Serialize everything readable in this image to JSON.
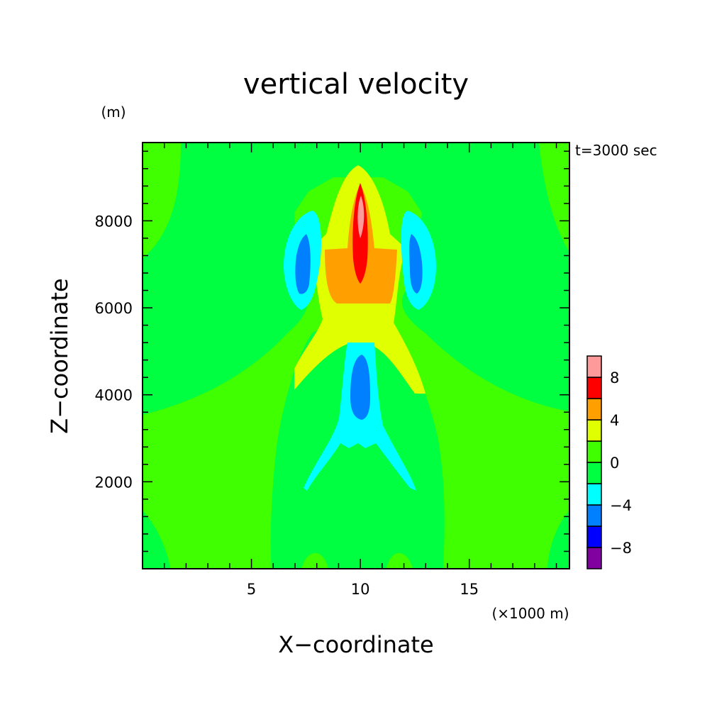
{
  "chart_data": {
    "type": "contour",
    "title": "vertical velocity",
    "xlabel": "X−coordinate",
    "ylabel": "Z−coordinate",
    "x_unit": "(×1000 m)",
    "y_unit": "(m)",
    "time_label": "t=3000 sec",
    "xlim": [
      0,
      19.6
    ],
    "ylim": [
      0,
      9800
    ],
    "x_ticks": [
      {
        "value": 5,
        "label": "5"
      },
      {
        "value": 10,
        "label": "10"
      },
      {
        "value": 15,
        "label": "15"
      }
    ],
    "y_ticks": [
      {
        "value": 2000,
        "label": "2000"
      },
      {
        "value": 4000,
        "label": "4000"
      },
      {
        "value": 6000,
        "label": "6000"
      },
      {
        "value": 8000,
        "label": "8000"
      }
    ],
    "levels": [
      -10,
      -8,
      -6,
      -4,
      -2,
      0,
      2,
      4,
      6,
      8,
      10
    ],
    "level_colors": [
      "#8000a0",
      "#0000ff",
      "#0080ff",
      "#00ffff",
      "#00ff40",
      "#40ff00",
      "#e0ff00",
      "#ffa000",
      "#ff0000",
      "#ff9a9a"
    ],
    "colorbar_labels": [
      {
        "value": 8,
        "label": "8"
      },
      {
        "value": 4,
        "label": "4"
      },
      {
        "value": 0,
        "label": "0"
      },
      {
        "value": -4,
        "label": "−4"
      },
      {
        "value": -8,
        "label": "−8"
      }
    ],
    "background_level": "0 to 2",
    "features": [
      {
        "name": "updraft core",
        "x_center": 10.2,
        "z_range": [
          6700,
          9000
        ],
        "max_value": 10
      },
      {
        "name": "upper downdraft left",
        "x_center": 7.5,
        "z_range": [
          6500,
          8300
        ],
        "min_value": -6
      },
      {
        "name": "upper downdraft right",
        "x_center": 13.0,
        "z_range": [
          6500,
          8300
        ],
        "min_value": -6
      },
      {
        "name": "mid-level downdraft",
        "x_center": 10.1,
        "z_range": [
          1900,
          5300
        ],
        "min_value": -6
      }
    ]
  }
}
